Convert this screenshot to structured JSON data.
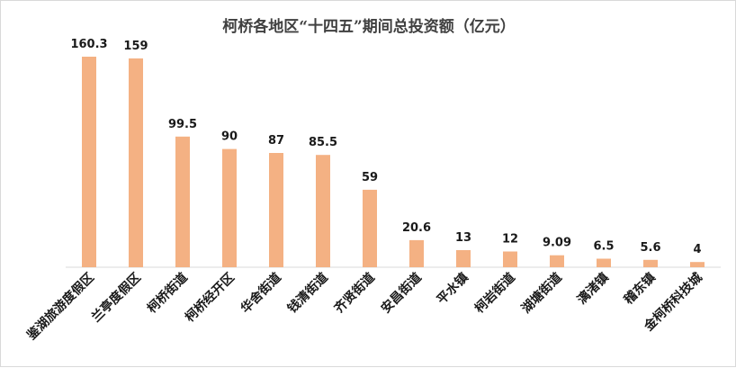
{
  "chart_data": {
    "type": "bar",
    "title": "柯桥各地区“十四五”期间总投资额（亿元）",
    "xlabel": "",
    "ylabel": "",
    "categories": [
      "鉴湖旅游度假区",
      "兰亭度假区",
      "柯桥街道",
      "柯桥经开区",
      "华舍街道",
      "钱清街道",
      "齐贤街道",
      "安昌街道",
      "平水镇",
      "柯岩街道",
      "湖塘街道",
      "漓渚镇",
      "稽东镇",
      "金柯桥科技城"
    ],
    "values": [
      160.3,
      159,
      99.5,
      90,
      87,
      85.5,
      59,
      20.6,
      13,
      12,
      9.09,
      6.5,
      5.6,
      4
    ],
    "value_labels": [
      "160.3",
      "159",
      "99.5",
      "90",
      "87",
      "85.5",
      "59",
      "20.6",
      "13",
      "12",
      "9.09",
      "6.5",
      "5.6",
      "4"
    ],
    "ylim": [
      0,
      170
    ],
    "grid": false,
    "legend": "none",
    "bar_color": "#F4B183",
    "axis_color": "#d9d9d9"
  }
}
